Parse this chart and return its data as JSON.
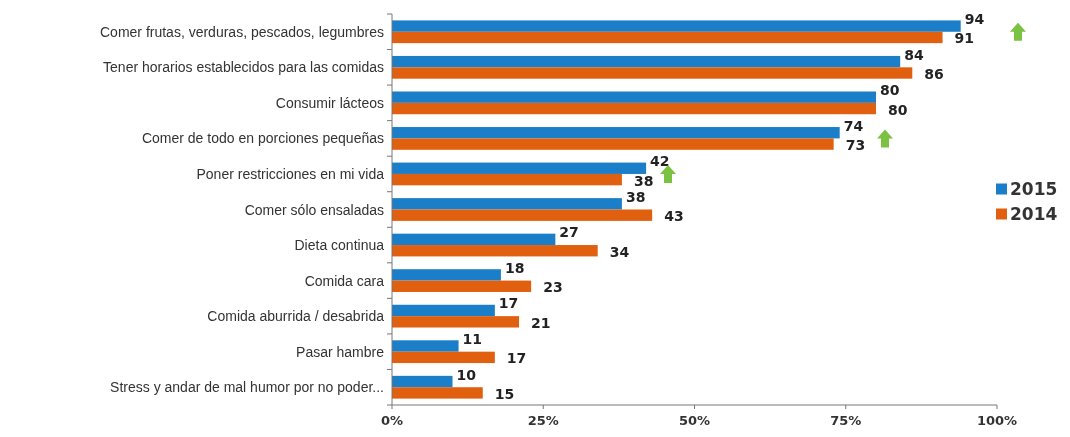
{
  "chart_data": {
    "type": "bar",
    "orientation": "horizontal",
    "categories": [
      "Comer frutas, verduras, pescados, legumbres",
      "Tener horarios establecidos para las comidas",
      "Consumir lácteos",
      "Comer de todo en porciones pequeñas",
      "Poner restricciones en mi vida",
      "Comer sólo ensaladas",
      "Dieta continua",
      "Comida cara",
      "Comida aburrida / desabrida",
      "Pasar  hambre",
      "Stress y andar de mal humor por no poder..."
    ],
    "series": [
      {
        "name": "2015",
        "color": "#1a7fc8",
        "values": [
          94,
          84,
          80,
          74,
          42,
          38,
          27,
          18,
          17,
          11,
          10
        ]
      },
      {
        "name": "2014",
        "color": "#e0600f",
        "values": [
          91,
          86,
          80,
          73,
          38,
          43,
          34,
          23,
          21,
          17,
          15
        ]
      }
    ],
    "xlim": [
      0,
      100
    ],
    "xticks": [
      {
        "value": 0,
        "label": "0%"
      },
      {
        "value": 25,
        "label": "25%"
      },
      {
        "value": 50,
        "label": "50%"
      },
      {
        "value": 75,
        "label": "75%"
      },
      {
        "value": 100,
        "label": "100%"
      }
    ],
    "data_labels": true,
    "legend": "right",
    "grid": false
  }
}
